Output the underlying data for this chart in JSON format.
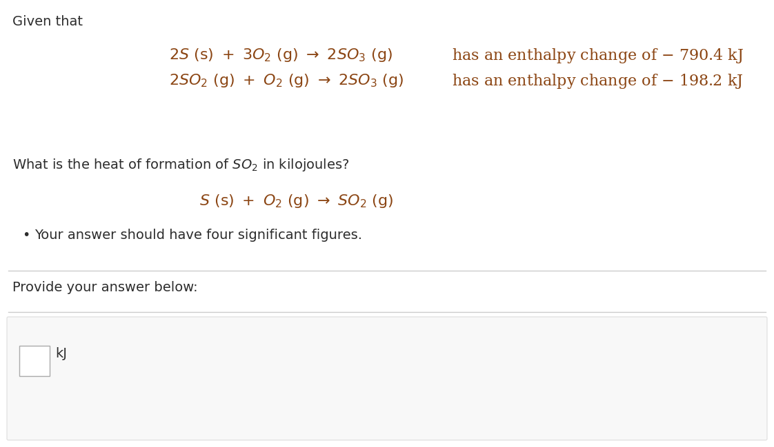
{
  "background_color": "#ffffff",
  "text_color": "#2d2d2d",
  "equation_color": "#8B4513",
  "given_that": "Given that",
  "bullet_text": "Your answer should have four significant figures.",
  "provide_text": "Provide your answer below:",
  "unit_text": "kJ",
  "fig_width": 11.22,
  "fig_height": 6.49,
  "dpi": 100
}
